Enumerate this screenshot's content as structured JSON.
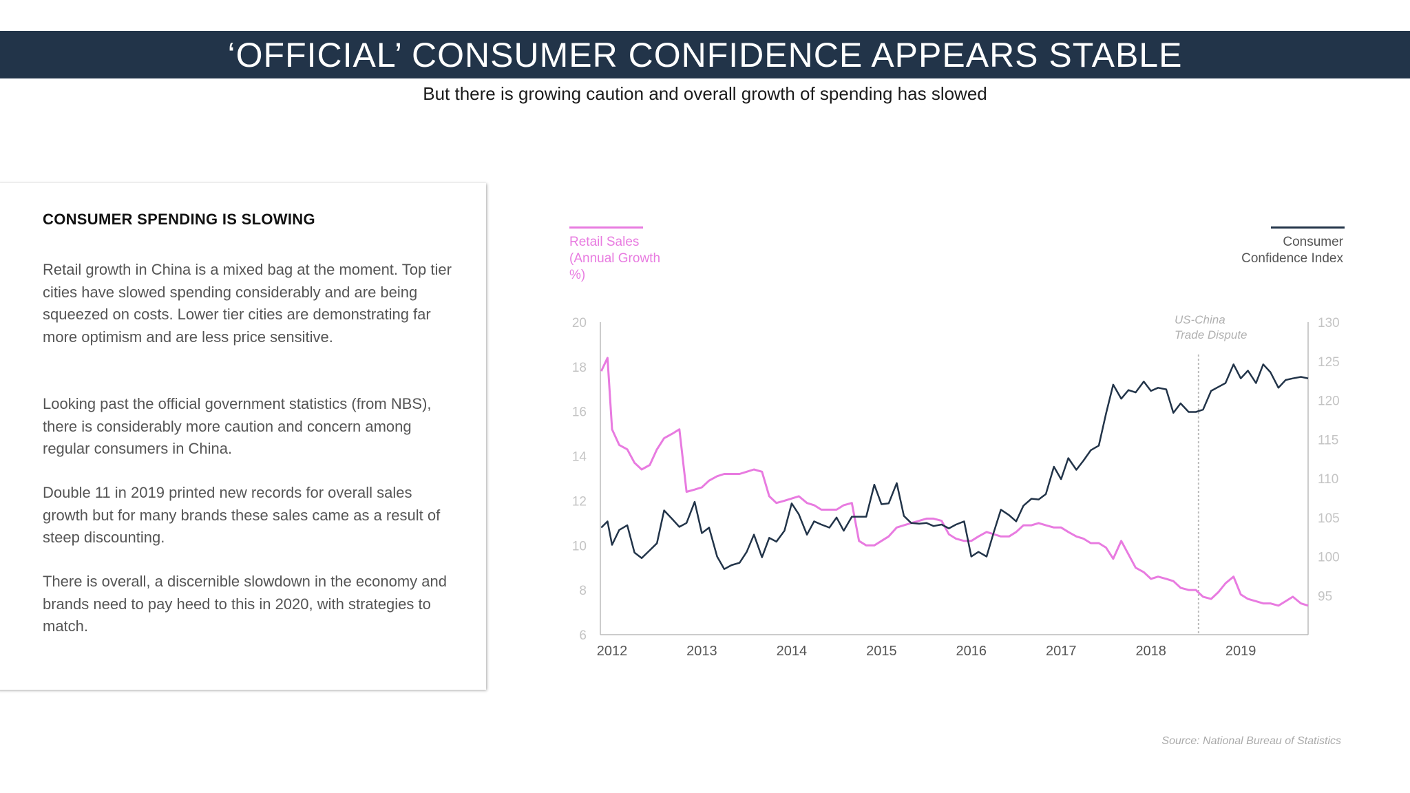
{
  "header": {
    "title": "‘OFFICIAL’ CONSUMER CONFIDENCE APPEARS STABLE",
    "subtitle": "But there is growing caution and overall growth of spending has slowed"
  },
  "card": {
    "heading": "CONSUMER SPENDING IS SLOWING",
    "paragraphs": [
      "Retail growth in China is a mixed bag at the moment. Top tier cities have slowed spending considerably and are being squeezed on costs. Lower tier cities are demonstrating far more optimism and are less price sensitive.",
      "Looking past the official government statistics (from NBS), there is considerably more caution and concern among regular consumers in China.",
      "Double 11 in 2019 printed new records for overall sales growth but for many brands these sales came as a result of steep discounting.",
      "There is overall, a discernible slowdown in the economy and brands need to pay heed to this in 2020, with strategies to match."
    ]
  },
  "legend": {
    "retail_label": "Retail Sales (Annual Growth %)",
    "confidence_label": "Consumer Confidence Index"
  },
  "source": "Source: National Bureau of Statistics",
  "colors": {
    "retail": "#e87be0",
    "confidence": "#223449",
    "axis": "#bbbbbb",
    "tick_text": "#c4c4c4",
    "title_bar": "#223449"
  },
  "chart_data": {
    "type": "line",
    "x_unit": "year (decimal)",
    "x_ticks": [
      "2012",
      "2013",
      "2014",
      "2015",
      "2016",
      "2017",
      "2018",
      "2019"
    ],
    "xlim": [
      2011.87,
      2019.75
    ],
    "y_left": {
      "label": "Retail Sales (Annual Growth %)",
      "lim": [
        6,
        20
      ],
      "ticks": [
        6,
        8,
        10,
        12,
        14,
        16,
        18,
        20
      ]
    },
    "y_right": {
      "label": "Consumer Confidence Index",
      "lim": [
        90,
        130
      ],
      "ticks": [
        95,
        100,
        105,
        110,
        115,
        120,
        125,
        130
      ]
    },
    "annotation": {
      "text": "US-China Trade Dispute",
      "x": 2018.53
    },
    "series": [
      {
        "name": "Retail Sales (Annual Growth %)",
        "axis": "left",
        "points": [
          [
            2011.88,
            17.8
          ],
          [
            2011.95,
            18.4
          ],
          [
            2012.0,
            15.2
          ],
          [
            2012.08,
            14.5
          ],
          [
            2012.17,
            14.3
          ],
          [
            2012.25,
            13.7
          ],
          [
            2012.33,
            13.4
          ],
          [
            2012.42,
            13.6
          ],
          [
            2012.5,
            14.3
          ],
          [
            2012.58,
            14.8
          ],
          [
            2012.67,
            15.0
          ],
          [
            2012.75,
            15.2
          ],
          [
            2012.83,
            12.4
          ],
          [
            2012.92,
            12.5
          ],
          [
            2013.0,
            12.6
          ],
          [
            2013.08,
            12.9
          ],
          [
            2013.17,
            13.1
          ],
          [
            2013.25,
            13.2
          ],
          [
            2013.33,
            13.2
          ],
          [
            2013.42,
            13.2
          ],
          [
            2013.5,
            13.3
          ],
          [
            2013.58,
            13.4
          ],
          [
            2013.67,
            13.3
          ],
          [
            2013.75,
            12.2
          ],
          [
            2013.83,
            11.9
          ],
          [
            2013.92,
            12.0
          ],
          [
            2014.0,
            12.1
          ],
          [
            2014.08,
            12.2
          ],
          [
            2014.17,
            11.9
          ],
          [
            2014.25,
            11.8
          ],
          [
            2014.33,
            11.6
          ],
          [
            2014.42,
            11.6
          ],
          [
            2014.5,
            11.6
          ],
          [
            2014.58,
            11.8
          ],
          [
            2014.67,
            11.9
          ],
          [
            2014.75,
            10.2
          ],
          [
            2014.83,
            10.0
          ],
          [
            2014.92,
            10.0
          ],
          [
            2015.0,
            10.2
          ],
          [
            2015.08,
            10.4
          ],
          [
            2015.17,
            10.8
          ],
          [
            2015.25,
            10.9
          ],
          [
            2015.33,
            11.0
          ],
          [
            2015.42,
            11.1
          ],
          [
            2015.5,
            11.2
          ],
          [
            2015.58,
            11.2
          ],
          [
            2015.67,
            11.1
          ],
          [
            2015.75,
            10.5
          ],
          [
            2015.83,
            10.3
          ],
          [
            2015.92,
            10.2
          ],
          [
            2016.0,
            10.2
          ],
          [
            2016.08,
            10.4
          ],
          [
            2016.17,
            10.6
          ],
          [
            2016.25,
            10.5
          ],
          [
            2016.33,
            10.4
          ],
          [
            2016.42,
            10.4
          ],
          [
            2016.5,
            10.6
          ],
          [
            2016.58,
            10.9
          ],
          [
            2016.67,
            10.9
          ],
          [
            2016.75,
            11.0
          ],
          [
            2016.83,
            10.9
          ],
          [
            2016.92,
            10.8
          ],
          [
            2017.0,
            10.8
          ],
          [
            2017.08,
            10.6
          ],
          [
            2017.17,
            10.4
          ],
          [
            2017.25,
            10.3
          ],
          [
            2017.33,
            10.1
          ],
          [
            2017.42,
            10.1
          ],
          [
            2017.5,
            9.9
          ],
          [
            2017.58,
            9.4
          ],
          [
            2017.67,
            10.2
          ],
          [
            2017.75,
            9.6
          ],
          [
            2017.83,
            9.0
          ],
          [
            2017.92,
            8.8
          ],
          [
            2018.0,
            8.5
          ],
          [
            2018.08,
            8.6
          ],
          [
            2018.17,
            8.5
          ],
          [
            2018.25,
            8.4
          ],
          [
            2018.33,
            8.1
          ],
          [
            2018.42,
            8.0
          ],
          [
            2018.5,
            8.0
          ],
          [
            2018.58,
            7.7
          ],
          [
            2018.67,
            7.6
          ],
          [
            2018.75,
            7.9
          ],
          [
            2018.83,
            8.3
          ],
          [
            2018.92,
            8.6
          ],
          [
            2019.0,
            7.8
          ],
          [
            2019.08,
            7.6
          ],
          [
            2019.17,
            7.5
          ],
          [
            2019.25,
            7.4
          ],
          [
            2019.33,
            7.4
          ],
          [
            2019.42,
            7.3
          ],
          [
            2019.5,
            7.5
          ],
          [
            2019.58,
            7.7
          ],
          [
            2019.67,
            7.4
          ],
          [
            2019.75,
            7.3
          ]
        ]
      },
      {
        "name": "Consumer Confidence Index",
        "axis": "right",
        "points": [
          [
            2011.88,
            103.7
          ],
          [
            2011.95,
            104.5
          ],
          [
            2012.0,
            101.5
          ],
          [
            2012.08,
            103.4
          ],
          [
            2012.17,
            104.0
          ],
          [
            2012.25,
            100.5
          ],
          [
            2012.33,
            99.8
          ],
          [
            2012.42,
            100.8
          ],
          [
            2012.5,
            101.7
          ],
          [
            2012.58,
            105.9
          ],
          [
            2012.67,
            104.8
          ],
          [
            2012.75,
            103.8
          ],
          [
            2012.83,
            104.3
          ],
          [
            2012.92,
            107.0
          ],
          [
            2013.0,
            103.0
          ],
          [
            2013.08,
            103.7
          ],
          [
            2013.17,
            100.0
          ],
          [
            2013.25,
            98.4
          ],
          [
            2013.33,
            98.9
          ],
          [
            2013.42,
            99.2
          ],
          [
            2013.5,
            100.6
          ],
          [
            2013.58,
            102.8
          ],
          [
            2013.67,
            99.9
          ],
          [
            2013.75,
            102.4
          ],
          [
            2013.83,
            101.9
          ],
          [
            2013.92,
            103.3
          ],
          [
            2014.0,
            106.8
          ],
          [
            2014.08,
            105.4
          ],
          [
            2014.17,
            102.8
          ],
          [
            2014.25,
            104.5
          ],
          [
            2014.33,
            104.1
          ],
          [
            2014.42,
            103.7
          ],
          [
            2014.5,
            105.0
          ],
          [
            2014.58,
            103.3
          ],
          [
            2014.67,
            105.1
          ],
          [
            2014.75,
            105.1
          ],
          [
            2014.83,
            105.1
          ],
          [
            2014.92,
            109.2
          ],
          [
            2015.0,
            106.7
          ],
          [
            2015.08,
            106.8
          ],
          [
            2015.17,
            109.4
          ],
          [
            2015.25,
            105.2
          ],
          [
            2015.33,
            104.3
          ],
          [
            2015.42,
            104.2
          ],
          [
            2015.5,
            104.3
          ],
          [
            2015.58,
            103.9
          ],
          [
            2015.67,
            104.1
          ],
          [
            2015.75,
            103.6
          ],
          [
            2015.83,
            104.1
          ],
          [
            2015.92,
            104.5
          ],
          [
            2016.0,
            100.0
          ],
          [
            2016.08,
            100.6
          ],
          [
            2016.17,
            100.0
          ],
          [
            2016.25,
            103.1
          ],
          [
            2016.33,
            106.0
          ],
          [
            2016.42,
            105.3
          ],
          [
            2016.5,
            104.5
          ],
          [
            2016.58,
            106.5
          ],
          [
            2016.67,
            107.4
          ],
          [
            2016.75,
            107.3
          ],
          [
            2016.83,
            108.0
          ],
          [
            2016.92,
            111.5
          ],
          [
            2017.0,
            109.9
          ],
          [
            2017.08,
            112.6
          ],
          [
            2017.17,
            111.1
          ],
          [
            2017.25,
            112.3
          ],
          [
            2017.33,
            113.6
          ],
          [
            2017.42,
            114.2
          ],
          [
            2017.5,
            118.3
          ],
          [
            2017.58,
            122.0
          ],
          [
            2017.67,
            120.2
          ],
          [
            2017.75,
            121.3
          ],
          [
            2017.83,
            121.0
          ],
          [
            2017.92,
            122.4
          ],
          [
            2018.0,
            121.2
          ],
          [
            2018.08,
            121.6
          ],
          [
            2018.17,
            121.4
          ],
          [
            2018.25,
            118.4
          ],
          [
            2018.33,
            119.6
          ],
          [
            2018.42,
            118.5
          ],
          [
            2018.5,
            118.5
          ],
          [
            2018.58,
            118.8
          ],
          [
            2018.67,
            121.2
          ],
          [
            2018.75,
            121.7
          ],
          [
            2018.83,
            122.2
          ],
          [
            2018.92,
            124.6
          ],
          [
            2019.0,
            122.8
          ],
          [
            2019.08,
            123.8
          ],
          [
            2019.17,
            122.2
          ],
          [
            2019.25,
            124.6
          ],
          [
            2019.33,
            123.6
          ],
          [
            2019.42,
            121.6
          ],
          [
            2019.5,
            122.6
          ],
          [
            2019.58,
            122.8
          ],
          [
            2019.67,
            123.0
          ],
          [
            2019.75,
            122.8
          ]
        ]
      }
    ]
  }
}
